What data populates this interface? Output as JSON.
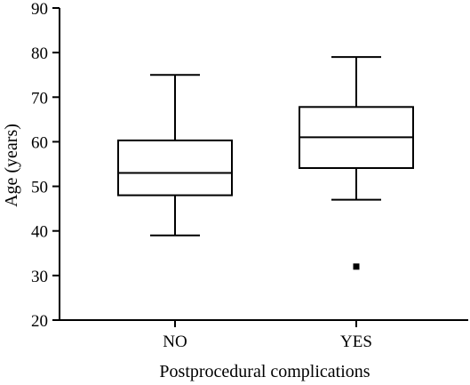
{
  "chart_data": {
    "type": "box",
    "categories": [
      "NO",
      "YES"
    ],
    "xlabel": "Postprocedural complications",
    "ylabel": "Age (years)",
    "ylim": [
      20,
      90
    ],
    "yticks": [
      20,
      30,
      40,
      50,
      60,
      70,
      80,
      90
    ],
    "grid": false,
    "series": [
      {
        "category": "NO",
        "whisker_low": 39,
        "q1": 48,
        "median": 53,
        "q3": 60.3,
        "whisker_high": 75,
        "outliers": []
      },
      {
        "category": "YES",
        "whisker_low": 47,
        "q1": 54.1,
        "median": 61,
        "q3": 67.8,
        "whisker_high": 79,
        "outliers": [
          32
        ]
      }
    ]
  }
}
